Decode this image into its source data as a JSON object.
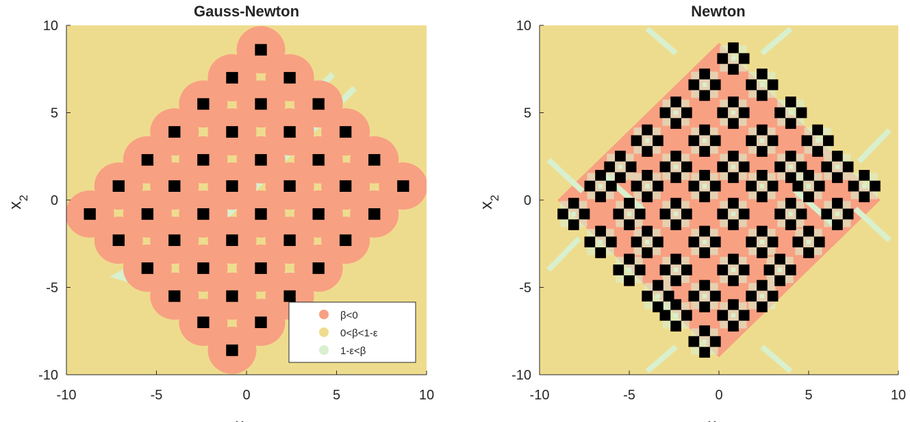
{
  "colors": {
    "background": "#EEDC8E",
    "negative": "#F8A082",
    "high": "#D8F0CE",
    "marker": "#000000",
    "axis": "#262626"
  },
  "chart_data": [
    {
      "type": "heatmap",
      "title": "Gauss-Newton",
      "xlabel": "x",
      "ylabel": "x_2",
      "xlim": [
        -10,
        10
      ],
      "ylim": [
        -10,
        10
      ],
      "xticks": [
        "-10",
        "-5",
        "0",
        "5",
        "10"
      ],
      "yticks": [
        "10",
        "5",
        "0",
        "-5",
        "-10"
      ],
      "grid": false,
      "legend": {
        "placement": "bottom-right",
        "entries": [
          {
            "label": "β<0",
            "color": "#F8A082"
          },
          {
            "label": "0<β<1-ε",
            "color": "#EEDC8E"
          },
          {
            "label": "1-ε<β",
            "color": "#D8F0CE"
          }
        ]
      },
      "critical_points": [
        [
          0.8,
          8.6
        ],
        [
          -0.8,
          7.0
        ],
        [
          2.4,
          7.0
        ],
        [
          -2.4,
          5.5
        ],
        [
          0.8,
          5.5
        ],
        [
          4.0,
          5.5
        ],
        [
          -4.0,
          3.9
        ],
        [
          -0.8,
          3.9
        ],
        [
          2.4,
          3.9
        ],
        [
          5.5,
          3.9
        ],
        [
          -5.5,
          2.3
        ],
        [
          -2.4,
          2.3
        ],
        [
          0.8,
          2.3
        ],
        [
          4.0,
          2.3
        ],
        [
          7.1,
          2.3
        ],
        [
          -7.1,
          0.8
        ],
        [
          -4.0,
          0.8
        ],
        [
          -0.8,
          0.8
        ],
        [
          2.4,
          0.8
        ],
        [
          5.5,
          0.8
        ],
        [
          8.7,
          0.8
        ],
        [
          -8.7,
          -0.8
        ],
        [
          -5.5,
          -0.8
        ],
        [
          -2.4,
          -0.8
        ],
        [
          0.8,
          -0.8
        ],
        [
          4.0,
          -0.8
        ],
        [
          7.1,
          -0.8
        ],
        [
          -7.1,
          -2.3
        ],
        [
          -4.0,
          -2.3
        ],
        [
          -0.8,
          -2.3
        ],
        [
          2.4,
          -2.3
        ],
        [
          5.5,
          -2.3
        ],
        [
          -5.5,
          -3.9
        ],
        [
          -2.4,
          -3.9
        ],
        [
          0.8,
          -3.9
        ],
        [
          4.0,
          -3.9
        ],
        [
          -4.0,
          -5.5
        ],
        [
          -0.8,
          -5.5
        ],
        [
          2.4,
          -5.5
        ],
        [
          -2.4,
          -7.0
        ],
        [
          0.8,
          -7.0
        ],
        [
          -0.8,
          -8.6
        ]
      ]
    },
    {
      "type": "heatmap",
      "title": "Newton",
      "xlabel": "x",
      "ylabel": "x_2",
      "xlim": [
        -10,
        10
      ],
      "ylim": [
        -10,
        10
      ],
      "xticks": [
        "-10",
        "-5",
        "0",
        "5",
        "10"
      ],
      "yticks": [
        "10",
        "5",
        "0",
        "-5",
        "-10"
      ],
      "grid": false,
      "critical_points": [
        [
          0.8,
          8.1
        ],
        [
          -0.8,
          6.6
        ],
        [
          2.4,
          6.6
        ],
        [
          -2.4,
          5.0
        ],
        [
          0.8,
          5.0
        ],
        [
          4.0,
          5.0
        ],
        [
          -4.0,
          3.4
        ],
        [
          -0.8,
          3.4
        ],
        [
          2.4,
          3.4
        ],
        [
          5.5,
          3.4
        ],
        [
          -5.5,
          1.9
        ],
        [
          -2.4,
          1.9
        ],
        [
          0.8,
          1.9
        ],
        [
          4.0,
          1.9
        ],
        [
          6.6,
          1.9
        ],
        [
          -6.6,
          0.8
        ],
        [
          -4.0,
          0.8
        ],
        [
          -0.8,
          0.8
        ],
        [
          2.4,
          0.8
        ],
        [
          5.0,
          0.8
        ],
        [
          8.1,
          0.8
        ],
        [
          -8.1,
          -0.8
        ],
        [
          -5.0,
          -0.8
        ],
        [
          -2.4,
          -0.8
        ],
        [
          0.8,
          -0.8
        ],
        [
          4.0,
          -0.8
        ],
        [
          6.6,
          -0.8
        ],
        [
          -6.6,
          -2.4
        ],
        [
          -4.0,
          -2.4
        ],
        [
          -0.8,
          -2.4
        ],
        [
          2.4,
          -2.4
        ],
        [
          5.0,
          -2.4
        ],
        [
          -5.0,
          -4.0
        ],
        [
          -2.4,
          -4.0
        ],
        [
          0.8,
          -4.0
        ],
        [
          3.4,
          -4.0
        ],
        [
          -3.4,
          -5.5
        ],
        [
          -0.8,
          -5.5
        ],
        [
          2.4,
          -5.5
        ],
        [
          -2.4,
          -6.6
        ],
        [
          0.8,
          -6.6
        ],
        [
          -0.8,
          -8.1
        ]
      ]
    }
  ]
}
